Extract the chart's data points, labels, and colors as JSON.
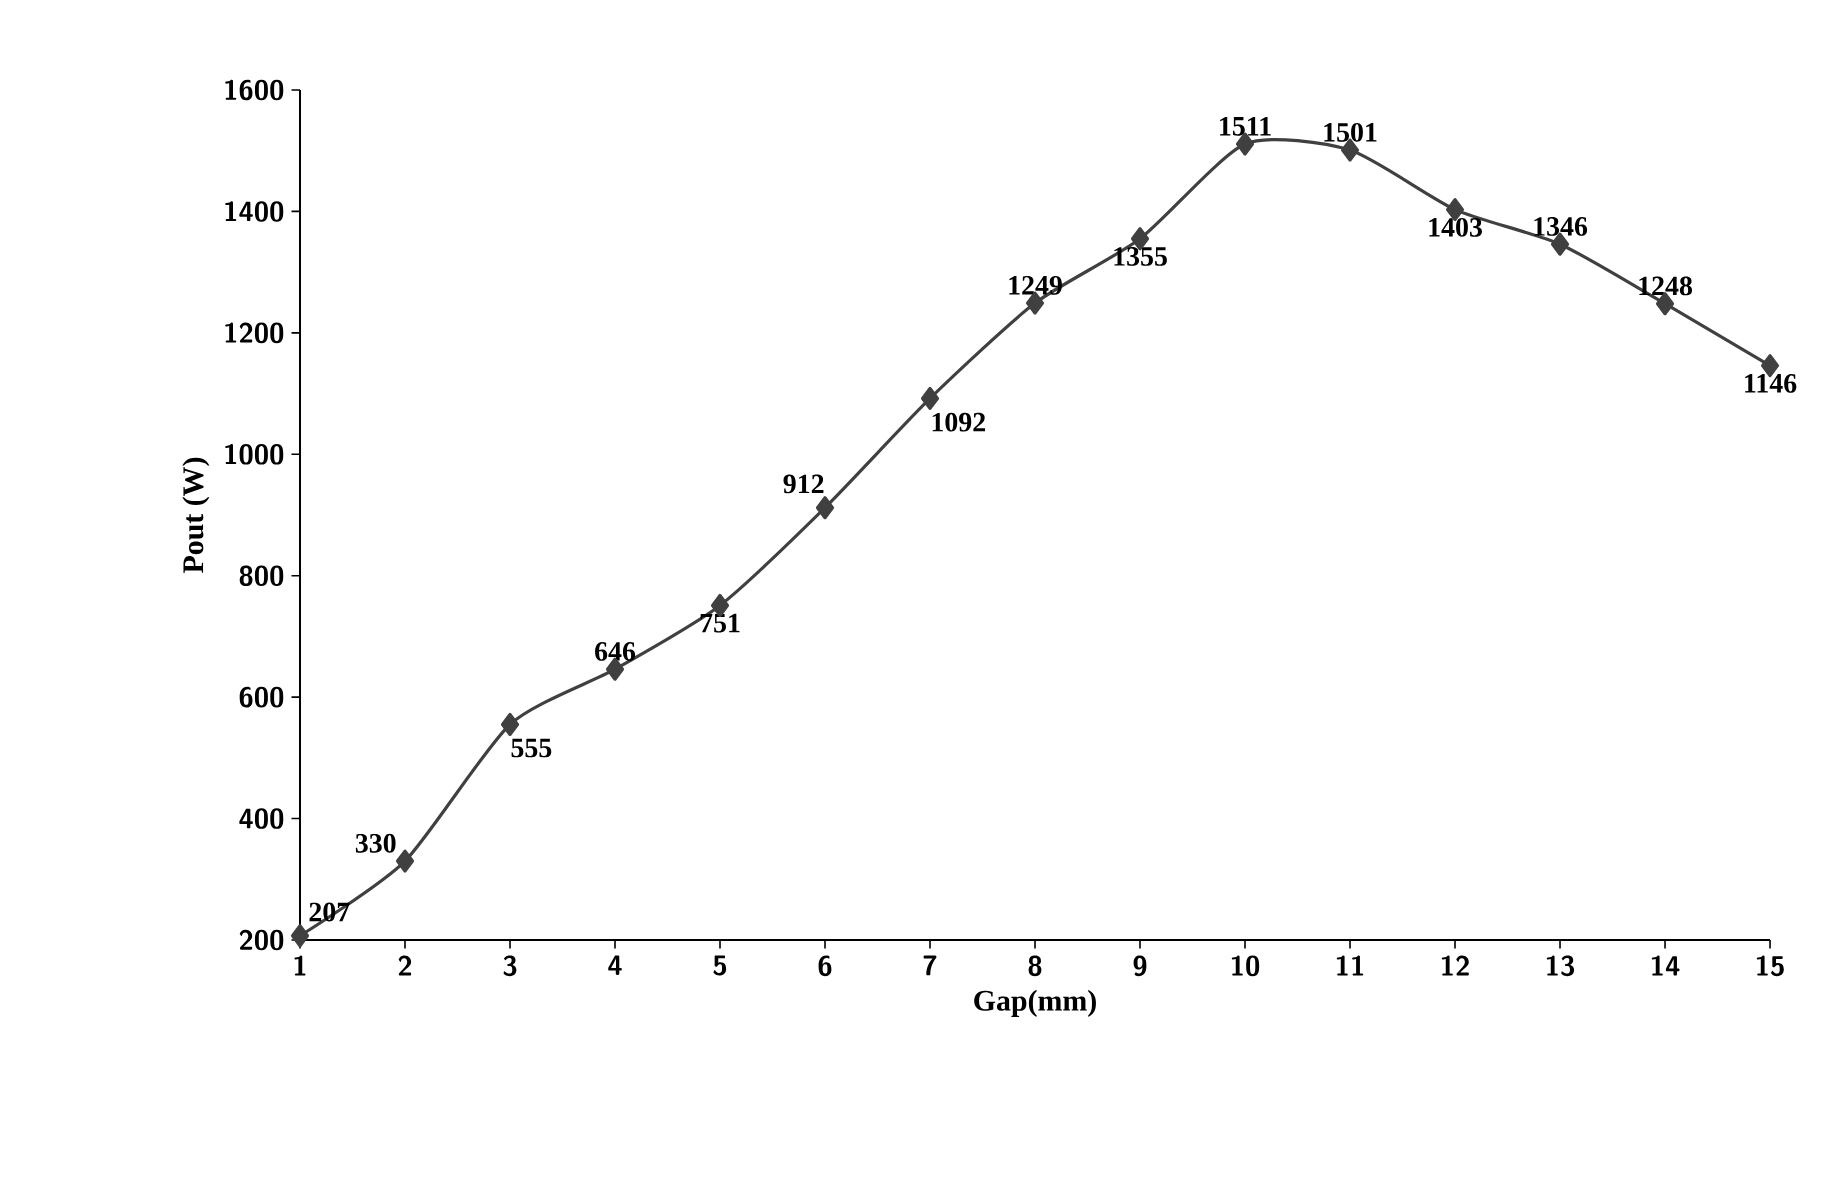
{
  "chart_data": {
    "type": "line",
    "xlabel": "Gap(mm)",
    "ylabel": "Pout (W)",
    "x": [
      1,
      2,
      3,
      4,
      5,
      6,
      7,
      8,
      9,
      10,
      11,
      12,
      13,
      14,
      15
    ],
    "series": [
      {
        "color": "#404040",
        "values": [
          207,
          330,
          555,
          646,
          751,
          912,
          1092,
          1249,
          1355,
          1511,
          1501,
          1403,
          1346,
          1248,
          1146
        ]
      }
    ],
    "xlim": [
      1,
      15
    ],
    "xticks": [
      1,
      2,
      3,
      4,
      5,
      6,
      7,
      8,
      9,
      10,
      11,
      12,
      13,
      14,
      15
    ],
    "ylim": [
      200,
      1600
    ],
    "yticks": [
      200,
      400,
      600,
      800,
      1000,
      1200,
      1400,
      1600
    ],
    "data_labels": true,
    "marker": "diamond",
    "line_style": "solid",
    "grid": false
  }
}
